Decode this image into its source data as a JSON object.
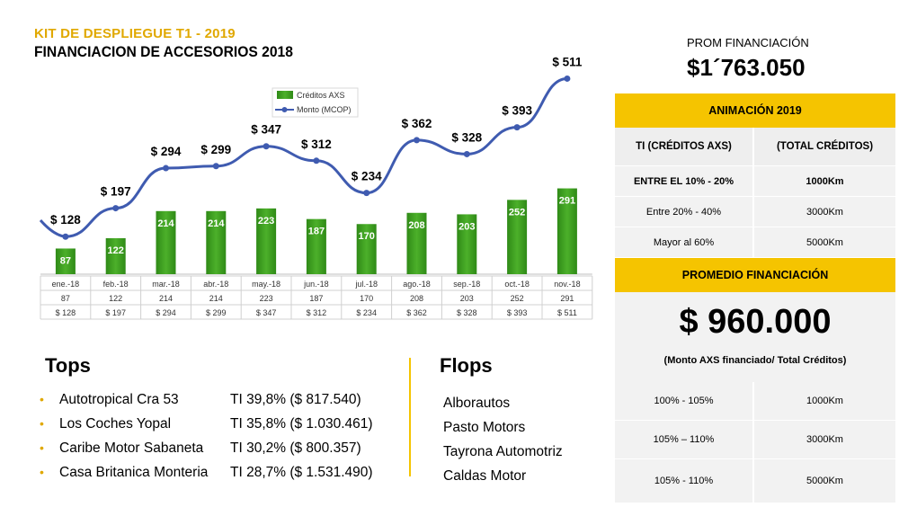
{
  "header": {
    "kit_title": "KIT DE DESPLIEGUE T1 - 2019",
    "main_title": "FINANCIACION DE ACCESORIOS 2018"
  },
  "colors": {
    "accent_yellow": "#f5c400",
    "kit_title_gold": "#e0a800",
    "bar_green": "#3a9c1c",
    "line_blue": "#3f5bb0"
  },
  "chart_data": {
    "type": "bar",
    "categories": [
      "ene.-18",
      "feb.-18",
      "mar.-18",
      "abr.-18",
      "may.-18",
      "jun.-18",
      "jul.-18",
      "ago.-18",
      "sep.-18",
      "oct.-18",
      "nov.-18"
    ],
    "series": [
      {
        "name": "Créditos AXS",
        "type": "bar",
        "values": [
          87,
          122,
          214,
          214,
          223,
          187,
          170,
          208,
          203,
          252,
          291
        ],
        "labels": [
          "87",
          "122",
          "214",
          "214",
          "223",
          "187",
          "170",
          "208",
          "203",
          "252",
          "291"
        ]
      },
      {
        "name": "Monto (MCOP)",
        "type": "line",
        "values": [
          128,
          197,
          294,
          299,
          347,
          312,
          234,
          362,
          328,
          393,
          511
        ],
        "labels": [
          "$ 128",
          "$ 197",
          "$ 294",
          "$ 299",
          "$ 347",
          "$ 312",
          "$ 234",
          "$ 362",
          "$ 328",
          "$ 393",
          "$ 511"
        ]
      }
    ],
    "legend_position": "top-left",
    "data_table": true
  },
  "tops": {
    "title": "Tops",
    "items": [
      {
        "name": "Autotropical Cra 53",
        "value": "TI 39,8% ($ 817.540)"
      },
      {
        "name": "Los Coches Yopal",
        "value": "TI 35,8% ($ 1.030.461)"
      },
      {
        "name": "Caribe Motor Sabaneta",
        "value": "TI 30,2% ($ 800.357)"
      },
      {
        "name": "Casa Britanica Monteria",
        "value": "TI 28,7% ($ 1.531.490)"
      }
    ]
  },
  "flops": {
    "title": "Flops",
    "items": [
      "Alborautos",
      "Pasto Motors",
      "Tayrona Automotriz",
      "Caldas Motor"
    ]
  },
  "prom": {
    "label": "PROM FINANCIACIÓN",
    "value": "$1´763.050"
  },
  "animacion": {
    "title": "ANIMACIÓN 2019",
    "col1": "TI (CRÉDITOS AXS)",
    "col2": "(TOTAL CRÉDITOS)",
    "rows": [
      {
        "range": "ENTRE EL 10% - 20%",
        "prize": "1000Km"
      },
      {
        "range": "Entre 20% - 40%",
        "prize": "3000Km"
      },
      {
        "range": "Mayor al 60%",
        "prize": "5000Km"
      }
    ]
  },
  "promedio": {
    "title": "PROMEDIO FINANCIACIÓN",
    "value": "$ 960.000",
    "note": "(Monto AXS financiado/ Total Créditos)",
    "rows": [
      {
        "range": "100% - 105%",
        "prize": "1000Km"
      },
      {
        "range": "105% – 110%",
        "prize": "3000Km"
      },
      {
        "range": "105% - 110%",
        "prize": "5000Km"
      }
    ]
  }
}
